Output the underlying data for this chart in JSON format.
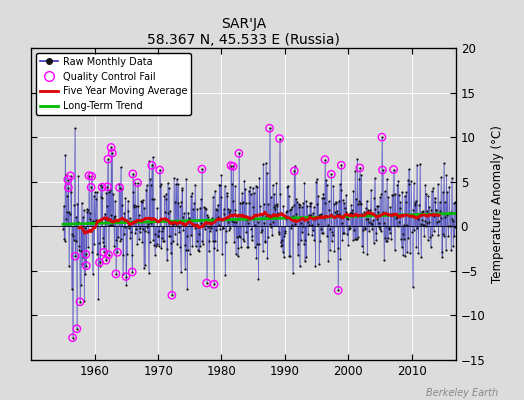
{
  "title": "SAR'JA",
  "subtitle": "58.367 N, 45.533 E (Russia)",
  "ylabel": "Temperature Anomaly (°C)",
  "watermark": "Berkeley Earth",
  "xlim": [
    1950,
    2017
  ],
  "ylim": [
    -15,
    20
  ],
  "yticks": [
    -15,
    -10,
    -5,
    0,
    5,
    10,
    15,
    20
  ],
  "xticks": [
    1960,
    1970,
    1980,
    1990,
    2000,
    2010
  ],
  "bg_color": "#dcdcdc",
  "plot_bg": "#dcdcdc",
  "raw_line_color": "#3333bb",
  "raw_marker_color": "#111111",
  "moving_avg_color": "#dd0000",
  "trend_color": "#00bb00",
  "qc_fail_color": "#ff00ff",
  "seed": 12345,
  "years_start": 1955,
  "years_end": 2016
}
